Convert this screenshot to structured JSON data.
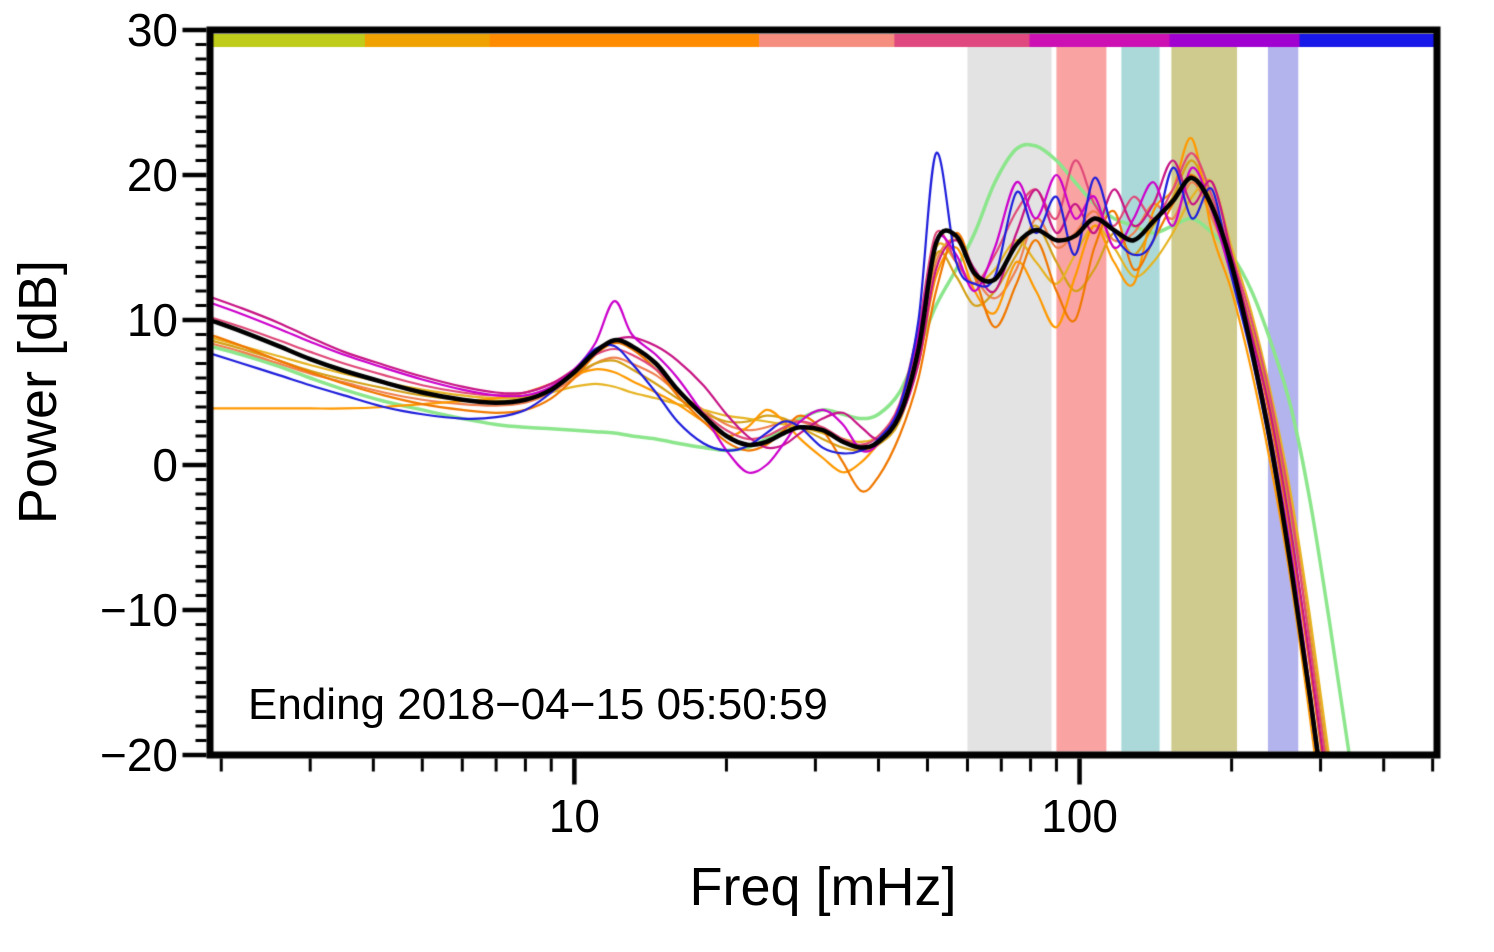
{
  "figure": {
    "background": "#ffffff"
  },
  "chart_data": {
    "type": "line",
    "title": "",
    "xlabel": "Freq [mHz]",
    "ylabel": "Power [dB]",
    "annotation": "Ending 2018−04−15 05:50:59",
    "x_scale": "log",
    "xlim": [
      1.9,
      510
    ],
    "ylim": [
      -20,
      30
    ],
    "grid": false,
    "legend": "none",
    "x_major_ticks": [
      10,
      100
    ],
    "x_major_tick_labels": [
      "10",
      "100"
    ],
    "x_minor_ticks": [
      2,
      3,
      4,
      5,
      6,
      7,
      8,
      9,
      20,
      30,
      40,
      50,
      60,
      70,
      80,
      90,
      200,
      300,
      400,
      500
    ],
    "y_major_ticks": [
      -20,
      -10,
      0,
      10,
      20,
      30
    ],
    "y_major_tick_labels": [
      "−20",
      "−10",
      "0",
      "10",
      "20",
      "30"
    ],
    "y_minor_tick_step": 1,
    "frequencies_mHz": [
      1.9,
      2.2,
      2.6,
      3.0,
      3.5,
      4.2,
      5.0,
      6.0,
      7.0,
      8.0,
      9.0,
      10,
      11,
      12,
      13,
      14.5,
      16,
      18,
      20,
      22,
      24,
      26,
      28,
      31,
      34,
      37,
      40,
      44,
      48,
      52,
      57,
      62,
      68,
      75,
      82,
      90,
      98,
      107,
      117,
      128,
      140,
      153,
      167,
      183,
      200,
      219,
      239,
      262,
      286,
      313,
      342,
      374,
      409,
      447,
      489
    ],
    "series": [
      {
        "name": "trace-light-green",
        "color": "#8CE68C",
        "width": 3.5,
        "values": [
          8.2,
          7.6,
          6.8,
          6.0,
          5.2,
          4.4,
          3.8,
          3.2,
          2.8,
          2.6,
          2.5,
          2.4,
          2.3,
          2.2,
          2.0,
          1.8,
          1.5,
          1.2,
          1.0,
          1.2,
          1.8,
          2.5,
          3.2,
          3.8,
          3.5,
          3.2,
          3.5,
          5.0,
          8.0,
          11.0,
          13.5,
          16.0,
          19.5,
          21.8,
          22.0,
          21.0,
          19.5,
          18.0,
          17.0,
          16.5,
          16.0,
          16.5,
          17.0,
          16.0,
          14.5,
          12.0,
          8.5,
          4.0,
          -2.5,
          -11.0,
          -20.0,
          -28.0,
          -36.0,
          -44.0,
          -52.0
        ]
      },
      {
        "name": "trace-coral",
        "color": "#F08050",
        "width": 2.2,
        "values": [
          8.4,
          7.8,
          7.0,
          6.3,
          5.7,
          5.0,
          4.5,
          4.2,
          4.1,
          4.3,
          5.0,
          6.0,
          7.0,
          7.4,
          7.0,
          6.2,
          5.0,
          3.8,
          2.8,
          2.4,
          2.6,
          3.0,
          3.0,
          2.4,
          1.6,
          1.2,
          1.6,
          3.4,
          8.0,
          14.0,
          15.5,
          13.0,
          11.5,
          13.5,
          17.0,
          15.0,
          16.0,
          17.5,
          15.5,
          16.0,
          18.0,
          17.0,
          19.5,
          17.0,
          13.5,
          9.0,
          4.5,
          -2.5,
          -11.0,
          -21.0,
          -31.0,
          -40.0,
          -48.0,
          -56.0,
          -63.0
        ]
      },
      {
        "name": "trace-goldenrod",
        "color": "#D4A017",
        "width": 2.2,
        "values": [
          8.6,
          8.0,
          7.2,
          6.5,
          5.9,
          5.3,
          4.8,
          4.5,
          4.4,
          4.6,
          5.2,
          6.2,
          7.0,
          7.2,
          6.6,
          5.6,
          4.6,
          3.6,
          3.0,
          3.0,
          3.4,
          3.2,
          2.6,
          1.8,
          1.2,
          1.0,
          1.4,
          3.0,
          7.5,
          14.5,
          13.0,
          11.0,
          12.0,
          14.5,
          16.5,
          14.0,
          12.0,
          13.5,
          16.0,
          14.5,
          16.5,
          18.5,
          21.0,
          18.0,
          14.0,
          9.5,
          4.0,
          -3.5,
          -12.0,
          -22.0,
          -32.0,
          -41.0,
          -49.0,
          -57.0,
          -64.0
        ]
      },
      {
        "name": "trace-gold",
        "color": "#E6B422",
        "width": 2.2,
        "values": [
          8.8,
          8.2,
          7.5,
          6.9,
          6.3,
          5.7,
          5.2,
          4.8,
          4.6,
          4.7,
          5.0,
          5.4,
          5.6,
          5.4,
          5.0,
          4.6,
          4.2,
          3.8,
          3.4,
          3.2,
          3.0,
          2.8,
          2.6,
          2.2,
          1.8,
          1.6,
          2.0,
          3.8,
          8.5,
          15.0,
          14.0,
          12.5,
          13.5,
          15.5,
          14.0,
          12.5,
          14.5,
          16.5,
          15.0,
          13.0,
          14.0,
          16.0,
          18.5,
          19.5,
          15.0,
          10.5,
          5.0,
          -2.0,
          -10.5,
          -20.5,
          -30.0,
          -39.0,
          -47.0,
          -55.0,
          -62.0
        ]
      },
      {
        "name": "trace-orange-flat",
        "color": "#FF9900",
        "width": 2.2,
        "values": [
          3.9,
          3.9,
          3.9,
          3.9,
          3.9,
          4.0,
          4.2,
          4.4,
          4.6,
          5.0,
          5.6,
          6.2,
          6.6,
          6.4,
          5.8,
          5.0,
          4.2,
          3.0,
          2.0,
          2.6,
          3.8,
          3.0,
          1.8,
          0.5,
          -0.5,
          0.2,
          1.5,
          3.5,
          7.0,
          13.0,
          15.0,
          12.0,
          10.5,
          14.0,
          12.0,
          9.5,
          13.0,
          16.5,
          14.0,
          12.5,
          17.5,
          19.0,
          22.5,
          16.0,
          12.0,
          6.5,
          0.0,
          -8.0,
          -17.5,
          -28.0,
          -38.0,
          -47.0,
          -55.0,
          -63.0,
          -70.0
        ]
      },
      {
        "name": "trace-dark-orange",
        "color": "#F07800",
        "width": 2.2,
        "values": [
          9.0,
          8.2,
          7.2,
          6.4,
          5.6,
          4.8,
          4.2,
          3.8,
          3.6,
          3.8,
          4.6,
          6.0,
          7.6,
          8.4,
          8.0,
          6.6,
          4.8,
          3.0,
          1.6,
          1.0,
          1.4,
          2.4,
          3.4,
          2.4,
          0.2,
          -1.8,
          -0.8,
          2.0,
          6.0,
          12.0,
          16.0,
          13.0,
          9.5,
          12.5,
          15.5,
          12.0,
          10.0,
          15.0,
          17.5,
          13.5,
          15.5,
          18.0,
          20.0,
          17.5,
          13.5,
          9.0,
          3.0,
          -5.0,
          -14.0,
          -24.0,
          -34.0,
          -43.0,
          -51.0,
          -59.0,
          -66.0
        ]
      },
      {
        "name": "trace-crimson",
        "color": "#E04878",
        "width": 2.2,
        "values": [
          10.2,
          9.5,
          8.6,
          7.8,
          7.0,
          6.2,
          5.5,
          5.0,
          4.8,
          5.0,
          5.6,
          6.6,
          7.6,
          8.0,
          7.6,
          6.6,
          5.2,
          3.6,
          2.4,
          1.8,
          2.0,
          2.6,
          3.0,
          2.6,
          1.8,
          1.4,
          2.0,
          4.2,
          9.5,
          16.0,
          14.0,
          12.5,
          14.5,
          17.5,
          19.0,
          17.0,
          21.0,
          18.0,
          16.5,
          18.5,
          17.0,
          19.0,
          21.5,
          18.5,
          14.5,
          10.0,
          4.5,
          -3.0,
          -12.5,
          -22.5,
          -32.5,
          -41.5,
          -49.5,
          -57.0,
          -64.0
        ]
      },
      {
        "name": "trace-violet-red",
        "color": "#C71585",
        "width": 2.2,
        "values": [
          11.6,
          10.8,
          9.8,
          8.8,
          7.8,
          6.9,
          6.1,
          5.4,
          5.0,
          5.0,
          5.6,
          6.6,
          7.8,
          8.6,
          8.8,
          8.2,
          7.2,
          5.5,
          3.5,
          2.0,
          1.2,
          1.4,
          2.2,
          3.2,
          3.6,
          2.6,
          1.8,
          3.2,
          7.0,
          13.5,
          15.5,
          13.5,
          12.0,
          16.0,
          19.0,
          16.0,
          18.0,
          16.0,
          19.0,
          16.5,
          18.0,
          21.0,
          18.0,
          19.5,
          14.5,
          9.0,
          3.5,
          -4.5,
          -13.5,
          -23.5,
          -33.5,
          -42.0,
          -50.0,
          -58.0,
          -65.0
        ]
      },
      {
        "name": "trace-magenta",
        "color": "#CC00CC",
        "width": 2.2,
        "values": [
          11.2,
          10.4,
          9.4,
          8.5,
          7.6,
          6.7,
          5.9,
          5.2,
          4.8,
          4.8,
          5.4,
          6.6,
          8.4,
          11.3,
          9.0,
          7.6,
          6.0,
          3.5,
          1.0,
          -0.5,
          0.0,
          1.5,
          3.0,
          3.8,
          2.8,
          1.0,
          1.5,
          4.0,
          9.0,
          15.5,
          14.5,
          12.0,
          15.0,
          19.5,
          17.0,
          20.0,
          17.0,
          18.5,
          15.0,
          17.0,
          19.5,
          16.5,
          20.5,
          17.5,
          13.0,
          8.5,
          2.0,
          -6.0,
          -15.5,
          -26.0,
          -36.0,
          -45.0,
          -53.0,
          -61.0,
          -68.0
        ]
      },
      {
        "name": "trace-blue",
        "color": "#1E1EDC",
        "width": 2.2,
        "values": [
          7.7,
          7.0,
          6.2,
          5.5,
          4.8,
          4.0,
          3.5,
          3.2,
          3.3,
          3.8,
          5.0,
          6.5,
          8.0,
          8.2,
          7.0,
          5.0,
          3.0,
          1.5,
          1.0,
          1.3,
          2.2,
          3.0,
          2.6,
          1.2,
          0.8,
          1.0,
          1.8,
          4.0,
          10.0,
          21.5,
          14.0,
          12.5,
          13.0,
          18.8,
          16.0,
          18.5,
          14.5,
          19.8,
          16.0,
          14.5,
          15.5,
          20.5,
          17.0,
          19.0,
          13.0,
          7.5,
          1.0,
          -7.0,
          -16.5,
          -27.0,
          -37.0,
          -46.0,
          -54.0,
          -62.0,
          -70.0
        ]
      },
      {
        "name": "trace-mean-black",
        "color": "#000000",
        "width": 4.5,
        "values": [
          10.0,
          9.2,
          8.2,
          7.3,
          6.5,
          5.7,
          5.0,
          4.5,
          4.3,
          4.5,
          5.2,
          6.4,
          7.8,
          8.6,
          8.2,
          7.0,
          5.2,
          3.4,
          2.0,
          1.4,
          1.6,
          2.2,
          2.6,
          2.4,
          1.6,
          1.2,
          1.6,
          3.4,
          8.0,
          15.3,
          15.8,
          13.2,
          12.8,
          15.2,
          16.2,
          15.5,
          15.8,
          17.0,
          16.2,
          15.5,
          16.8,
          18.2,
          19.8,
          17.8,
          13.8,
          8.0,
          1.5,
          -7.0,
          -16.0,
          -26.0,
          -35.0,
          -43.0,
          -51.0,
          -58.0,
          -65.0
        ]
      }
    ],
    "bands": [
      {
        "name": "band-gray",
        "from": 60,
        "to": 88,
        "color": "#E3E3E3"
      },
      {
        "name": "band-red",
        "from": 90,
        "to": 113,
        "color": "#FAA3A3"
      },
      {
        "name": "band-teal",
        "from": 121,
        "to": 144,
        "color": "#ABD9D9"
      },
      {
        "name": "band-olive",
        "from": 152,
        "to": 205,
        "color": "#CFCB8E"
      },
      {
        "name": "band-periwinkle",
        "from": 236,
        "to": 271,
        "color": "#B3B3EE"
      }
    ],
    "colorbar_segments": [
      {
        "color": "#BFCC1A",
        "from": 1.9,
        "to": 3.85
      },
      {
        "color": "#F0A202",
        "from": 3.85,
        "to": 6.8
      },
      {
        "color": "#FF8C00",
        "from": 6.8,
        "to": 23.2
      },
      {
        "color": "#F58E7E",
        "from": 23.2,
        "to": 43.0
      },
      {
        "color": "#E04880",
        "from": 43.0,
        "to": 79.6
      },
      {
        "color": "#CC10B4",
        "from": 79.6,
        "to": 150.7
      },
      {
        "color": "#A000D0",
        "from": 150.7,
        "to": 272.6
      },
      {
        "color": "#1818E8",
        "from": 272.6,
        "to": 510
      }
    ]
  }
}
